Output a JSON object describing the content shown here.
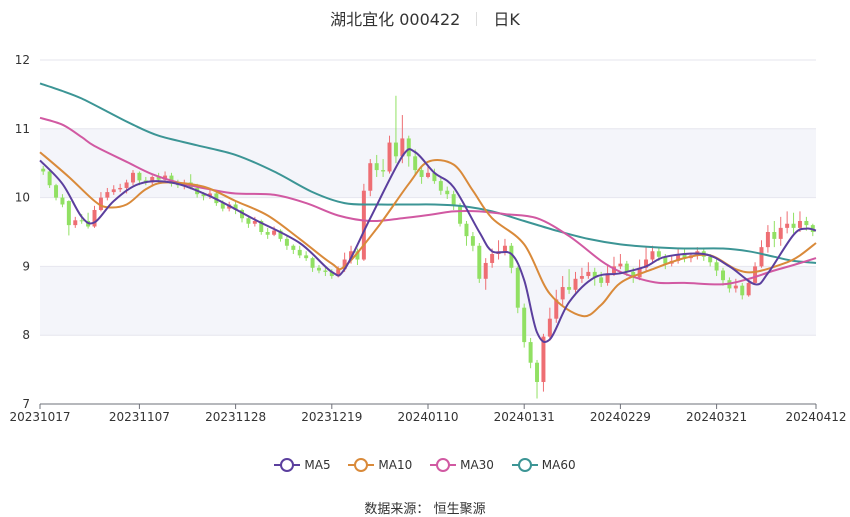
{
  "header": {
    "stock": "湖北宜化 000422",
    "period": "日K"
  },
  "footer": {
    "source_label": "数据来源：",
    "source_name": "恒生聚源"
  },
  "colors": {
    "up": "#ee6e73",
    "down": "#91e063",
    "MA5": "#5b3f9e",
    "MA10": "#d98a3a",
    "MA30": "#d159a2",
    "MA60": "#3c9595",
    "grid": "#e6e6ee",
    "band": "#f4f5fa"
  },
  "chart_data": {
    "type": "candlestick",
    "title": "湖北宜化 000422 日K",
    "ylim": [
      7,
      12
    ],
    "yticks": [
      7,
      8,
      9,
      10,
      11,
      12
    ],
    "xticks": [
      "20231017",
      "20231107",
      "20231128",
      "20231219",
      "20240110",
      "20240131",
      "20240229",
      "20240321",
      "20240412"
    ],
    "xtick_index": [
      0,
      15,
      30,
      45,
      60,
      75,
      90,
      105,
      120
    ],
    "legend": [
      "MA5",
      "MA10",
      "MA30",
      "MA60"
    ],
    "legend_position": "bottom",
    "grid": true,
    "candles": [
      [
        10.42,
        10.38,
        10.46,
        10.33
      ],
      [
        10.38,
        10.18,
        10.4,
        10.14
      ],
      [
        10.18,
        10.0,
        10.2,
        9.96
      ],
      [
        10.0,
        9.9,
        10.05,
        9.86
      ],
      [
        9.95,
        9.6,
        9.96,
        9.45
      ],
      [
        9.6,
        9.67,
        9.72,
        9.56
      ],
      [
        9.67,
        9.66,
        9.76,
        9.62
      ],
      [
        9.66,
        9.58,
        9.78,
        9.55
      ],
      [
        9.58,
        9.82,
        9.88,
        9.56
      ],
      [
        9.82,
        10.0,
        10.08,
        9.8
      ],
      [
        10.0,
        10.08,
        10.14,
        9.96
      ],
      [
        10.08,
        10.12,
        10.18,
        10.04
      ],
      [
        10.12,
        10.14,
        10.2,
        10.08
      ],
      [
        10.14,
        10.22,
        10.26,
        10.06
      ],
      [
        10.22,
        10.36,
        10.4,
        10.18
      ],
      [
        10.36,
        10.25,
        10.38,
        10.18
      ],
      [
        10.25,
        10.22,
        10.3,
        10.18
      ],
      [
        10.22,
        10.3,
        10.32,
        10.18
      ],
      [
        10.3,
        10.26,
        10.36,
        10.22
      ],
      [
        10.26,
        10.32,
        10.38,
        10.24
      ],
      [
        10.32,
        10.2,
        10.36,
        10.16
      ],
      [
        10.2,
        10.18,
        10.26,
        10.14
      ],
      [
        10.18,
        10.22,
        10.26,
        10.12
      ],
      [
        10.22,
        10.14,
        10.34,
        10.12
      ],
      [
        10.14,
        10.05,
        10.2,
        10.0
      ],
      [
        10.05,
        10.02,
        10.08,
        9.96
      ],
      [
        10.02,
        10.06,
        10.12,
        9.98
      ],
      [
        10.06,
        9.92,
        10.08,
        9.88
      ],
      [
        9.92,
        9.84,
        9.96,
        9.8
      ],
      [
        9.84,
        9.9,
        9.94,
        9.8
      ],
      [
        9.9,
        9.82,
        9.94,
        9.76
      ],
      [
        9.82,
        9.7,
        9.84,
        9.64
      ],
      [
        9.7,
        9.62,
        9.74,
        9.56
      ],
      [
        9.62,
        9.66,
        9.72,
        9.58
      ],
      [
        9.66,
        9.5,
        9.68,
        9.46
      ],
      [
        9.5,
        9.46,
        9.56,
        9.4
      ],
      [
        9.46,
        9.52,
        9.58,
        9.44
      ],
      [
        9.52,
        9.4,
        9.54,
        9.36
      ],
      [
        9.4,
        9.3,
        9.44,
        9.24
      ],
      [
        9.3,
        9.24,
        9.32,
        9.18
      ],
      [
        9.24,
        9.16,
        9.3,
        9.12
      ],
      [
        9.16,
        9.12,
        9.22,
        9.08
      ],
      [
        9.12,
        8.98,
        9.14,
        8.92
      ],
      [
        8.98,
        8.94,
        9.02,
        8.9
      ],
      [
        8.94,
        8.92,
        8.98,
        8.86
      ],
      [
        8.92,
        8.86,
        8.96,
        8.82
      ],
      [
        8.86,
        8.96,
        9.0,
        8.84
      ],
      [
        8.96,
        9.1,
        9.2,
        8.92
      ],
      [
        9.1,
        9.22,
        9.3,
        9.04
      ],
      [
        9.22,
        9.1,
        9.26,
        9.02
      ],
      [
        9.1,
        10.1,
        10.2,
        9.08
      ],
      [
        10.1,
        10.5,
        10.56,
        10.02
      ],
      [
        10.5,
        10.4,
        10.62,
        10.3
      ],
      [
        10.4,
        10.38,
        10.56,
        10.3
      ],
      [
        10.38,
        10.8,
        10.9,
        10.35
      ],
      [
        10.8,
        10.6,
        11.48,
        10.5
      ],
      [
        10.6,
        10.86,
        11.2,
        10.5
      ],
      [
        10.86,
        10.6,
        10.9,
        10.45
      ],
      [
        10.6,
        10.4,
        10.7,
        10.32
      ],
      [
        10.4,
        10.3,
        10.45,
        10.2
      ],
      [
        10.3,
        10.36,
        10.48,
        10.28
      ],
      [
        10.36,
        10.24,
        10.42,
        10.2
      ],
      [
        10.24,
        10.1,
        10.3,
        10.04
      ],
      [
        10.1,
        10.05,
        10.16,
        9.98
      ],
      [
        10.05,
        9.88,
        10.1,
        9.82
      ],
      [
        9.88,
        9.62,
        9.92,
        9.58
      ],
      [
        9.62,
        9.44,
        9.66,
        9.3
      ],
      [
        9.44,
        9.3,
        9.5,
        9.22
      ],
      [
        9.3,
        8.82,
        9.34,
        8.76
      ],
      [
        8.82,
        9.05,
        9.12,
        8.66
      ],
      [
        9.05,
        9.18,
        9.26,
        8.98
      ],
      [
        9.18,
        9.22,
        9.38,
        9.1
      ],
      [
        9.22,
        9.3,
        9.4,
        9.16
      ],
      [
        9.3,
        8.98,
        9.34,
        8.9
      ],
      [
        8.98,
        8.4,
        9.0,
        8.32
      ],
      [
        8.4,
        7.9,
        8.46,
        7.82
      ],
      [
        7.9,
        7.6,
        7.96,
        7.52
      ],
      [
        7.6,
        7.32,
        7.64,
        7.08
      ],
      [
        7.32,
        7.98,
        8.02,
        7.18
      ],
      [
        7.98,
        8.24,
        8.4,
        7.92
      ],
      [
        8.24,
        8.52,
        8.66,
        8.18
      ],
      [
        8.52,
        8.7,
        8.86,
        8.44
      ],
      [
        8.7,
        8.66,
        8.96,
        8.6
      ],
      [
        8.66,
        8.82,
        8.92,
        8.62
      ],
      [
        8.82,
        8.86,
        8.98,
        8.76
      ],
      [
        8.86,
        8.92,
        9.06,
        8.82
      ],
      [
        8.92,
        8.84,
        8.98,
        8.72
      ],
      [
        8.84,
        8.76,
        8.92,
        8.7
      ],
      [
        8.76,
        8.9,
        9.02,
        8.72
      ],
      [
        8.9,
        9.0,
        9.14,
        8.86
      ],
      [
        9.0,
        9.04,
        9.18,
        8.96
      ],
      [
        9.04,
        8.92,
        9.08,
        8.86
      ],
      [
        8.92,
        8.84,
        8.98,
        8.76
      ],
      [
        8.84,
        8.98,
        9.1,
        8.8
      ],
      [
        8.98,
        9.1,
        9.28,
        8.94
      ],
      [
        9.1,
        9.22,
        9.3,
        9.04
      ],
      [
        9.22,
        9.14,
        9.28,
        9.08
      ],
      [
        9.14,
        9.04,
        9.18,
        8.96
      ],
      [
        9.04,
        9.08,
        9.16,
        9.0
      ],
      [
        9.08,
        9.18,
        9.26,
        9.04
      ],
      [
        9.18,
        9.12,
        9.26,
        9.06
      ],
      [
        9.12,
        9.16,
        9.2,
        9.06
      ],
      [
        9.16,
        9.22,
        9.28,
        9.1
      ],
      [
        9.22,
        9.14,
        9.26,
        9.08
      ],
      [
        9.14,
        9.06,
        9.18,
        9.0
      ],
      [
        9.06,
        8.94,
        9.1,
        8.86
      ],
      [
        8.94,
        8.8,
        8.98,
        8.72
      ],
      [
        8.8,
        8.68,
        8.84,
        8.62
      ],
      [
        8.68,
        8.72,
        8.82,
        8.62
      ],
      [
        8.72,
        8.58,
        8.76,
        8.52
      ],
      [
        8.58,
        8.76,
        8.82,
        8.56
      ],
      [
        8.76,
        9.0,
        9.06,
        8.74
      ],
      [
        9.0,
        9.28,
        9.38,
        8.98
      ],
      [
        9.28,
        9.5,
        9.6,
        9.2
      ],
      [
        9.5,
        9.4,
        9.66,
        9.28
      ],
      [
        9.4,
        9.56,
        9.72,
        9.3
      ],
      [
        9.56,
        9.62,
        9.8,
        9.48
      ],
      [
        9.62,
        9.56,
        9.78,
        9.48
      ],
      [
        9.56,
        9.66,
        9.8,
        9.5
      ],
      [
        9.66,
        9.6,
        9.72,
        9.52
      ],
      [
        9.6,
        9.5,
        9.62,
        9.44
      ]
    ],
    "series": [
      {
        "name": "MA5",
        "anchors": [
          [
            0,
            10.54
          ],
          [
            3,
            10.2
          ],
          [
            6,
            9.72
          ],
          [
            8,
            9.64
          ],
          [
            11,
            9.95
          ],
          [
            15,
            10.2
          ],
          [
            20,
            10.22
          ],
          [
            26,
            10.02
          ],
          [
            33,
            9.68
          ],
          [
            40,
            9.34
          ],
          [
            45,
            8.92
          ],
          [
            47,
            8.96
          ],
          [
            51,
            9.7
          ],
          [
            56,
            10.6
          ],
          [
            58,
            10.66
          ],
          [
            61,
            10.36
          ],
          [
            64,
            10.15
          ],
          [
            68,
            9.5
          ],
          [
            70,
            9.22
          ],
          [
            73,
            9.18
          ],
          [
            75,
            8.8
          ],
          [
            77,
            8.04
          ],
          [
            79,
            7.94
          ],
          [
            82,
            8.48
          ],
          [
            86,
            8.84
          ],
          [
            90,
            8.9
          ],
          [
            94,
            9.0
          ],
          [
            97,
            9.14
          ],
          [
            103,
            9.18
          ],
          [
            107,
            9.0
          ],
          [
            111,
            8.74
          ],
          [
            113,
            8.9
          ],
          [
            117,
            9.46
          ],
          [
            119,
            9.55
          ],
          [
            120,
            9.52
          ]
        ]
      },
      {
        "name": "MA10",
        "anchors": [
          [
            0,
            10.66
          ],
          [
            4,
            10.3
          ],
          [
            8,
            9.95
          ],
          [
            10,
            9.86
          ],
          [
            13,
            9.9
          ],
          [
            16,
            10.12
          ],
          [
            19,
            10.22
          ],
          [
            25,
            10.16
          ],
          [
            30,
            9.95
          ],
          [
            35,
            9.74
          ],
          [
            40,
            9.4
          ],
          [
            45,
            9.04
          ],
          [
            47,
            9.0
          ],
          [
            52,
            9.55
          ],
          [
            57,
            10.2
          ],
          [
            60,
            10.52
          ],
          [
            64,
            10.48
          ],
          [
            67,
            10.1
          ],
          [
            70,
            9.7
          ],
          [
            75,
            9.32
          ],
          [
            79,
            8.6
          ],
          [
            84,
            8.28
          ],
          [
            87,
            8.44
          ],
          [
            90,
            8.76
          ],
          [
            95,
            8.96
          ],
          [
            100,
            9.12
          ],
          [
            104,
            9.16
          ],
          [
            108,
            8.96
          ],
          [
            111,
            8.92
          ],
          [
            116,
            9.06
          ],
          [
            118,
            9.16
          ],
          [
            120,
            9.34
          ]
        ]
      },
      {
        "name": "MA30",
        "anchors": [
          [
            0,
            11.16
          ],
          [
            3,
            11.06
          ],
          [
            6,
            10.88
          ],
          [
            8,
            10.75
          ],
          [
            13,
            10.52
          ],
          [
            17,
            10.34
          ],
          [
            21,
            10.22
          ],
          [
            26,
            10.12
          ],
          [
            30,
            10.06
          ],
          [
            36,
            10.04
          ],
          [
            41,
            9.92
          ],
          [
            46,
            9.74
          ],
          [
            51,
            9.66
          ],
          [
            56,
            9.7
          ],
          [
            61,
            9.76
          ],
          [
            64,
            9.8
          ],
          [
            68,
            9.8
          ],
          [
            72,
            9.76
          ],
          [
            77,
            9.7
          ],
          [
            82,
            9.44
          ],
          [
            87,
            9.08
          ],
          [
            90,
            8.92
          ],
          [
            93,
            8.82
          ],
          [
            96,
            8.76
          ],
          [
            100,
            8.76
          ],
          [
            106,
            8.74
          ],
          [
            110,
            8.82
          ],
          [
            114,
            8.94
          ],
          [
            117,
            9.02
          ],
          [
            120,
            9.12
          ]
        ]
      },
      {
        "name": "MA60",
        "anchors": [
          [
            0,
            11.66
          ],
          [
            3,
            11.55
          ],
          [
            6,
            11.44
          ],
          [
            10,
            11.25
          ],
          [
            14,
            11.06
          ],
          [
            18,
            10.9
          ],
          [
            24,
            10.76
          ],
          [
            30,
            10.62
          ],
          [
            36,
            10.38
          ],
          [
            42,
            10.08
          ],
          [
            47,
            9.92
          ],
          [
            52,
            9.9
          ],
          [
            57,
            9.9
          ],
          [
            61,
            9.9
          ],
          [
            65,
            9.88
          ],
          [
            70,
            9.8
          ],
          [
            75,
            9.66
          ],
          [
            80,
            9.52
          ],
          [
            85,
            9.4
          ],
          [
            90,
            9.32
          ],
          [
            95,
            9.28
          ],
          [
            100,
            9.26
          ],
          [
            106,
            9.26
          ],
          [
            110,
            9.22
          ],
          [
            114,
            9.14
          ],
          [
            117,
            9.08
          ],
          [
            120,
            9.05
          ]
        ]
      }
    ]
  }
}
